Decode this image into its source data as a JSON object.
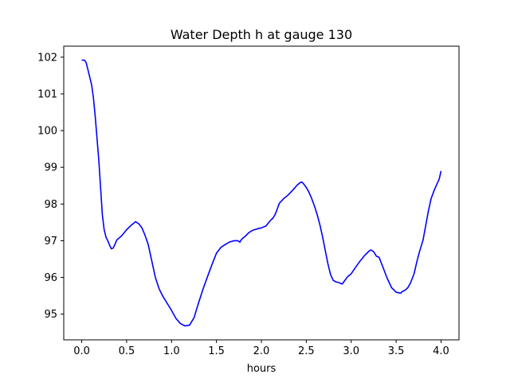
{
  "chart_data": {
    "type": "line",
    "title": "Water Depth h at gauge 130",
    "xlabel": "hours",
    "ylabel": "",
    "xlim": [
      -0.2,
      4.2
    ],
    "ylim": [
      94.3,
      102.3
    ],
    "xticks": [
      0.0,
      0.5,
      1.0,
      1.5,
      2.0,
      2.5,
      3.0,
      3.5,
      4.0
    ],
    "xtick_labels": [
      "0.0",
      "0.5",
      "1.0",
      "1.5",
      "2.0",
      "2.5",
      "3.0",
      "3.5",
      "4.0"
    ],
    "yticks": [
      95,
      96,
      97,
      98,
      99,
      100,
      101,
      102
    ],
    "ytick_labels": [
      "95",
      "96",
      "97",
      "98",
      "99",
      "100",
      "101",
      "102"
    ],
    "grid": false,
    "legend": "none",
    "series": [
      {
        "color": "#0000ff",
        "x": [
          0.0,
          0.03,
          0.05,
          0.07,
          0.09,
          0.11,
          0.13,
          0.15,
          0.17,
          0.19,
          0.21,
          0.23,
          0.25,
          0.27,
          0.29,
          0.31,
          0.33,
          0.35,
          0.37,
          0.39,
          0.42,
          0.45,
          0.5,
          0.55,
          0.6,
          0.64,
          0.67,
          0.7,
          0.74,
          0.78,
          0.82,
          0.86,
          0.9,
          0.95,
          1.0,
          1.05,
          1.1,
          1.15,
          1.2,
          1.25,
          1.3,
          1.35,
          1.4,
          1.45,
          1.5,
          1.55,
          1.6,
          1.65,
          1.7,
          1.74,
          1.76,
          1.78,
          1.82,
          1.86,
          1.9,
          1.95,
          2.0,
          2.05,
          2.1,
          2.13,
          2.15,
          2.17,
          2.2,
          2.25,
          2.3,
          2.35,
          2.4,
          2.43,
          2.45,
          2.47,
          2.5,
          2.53,
          2.56,
          2.59,
          2.62,
          2.65,
          2.68,
          2.71,
          2.74,
          2.77,
          2.8,
          2.83,
          2.86,
          2.9,
          2.93,
          2.96,
          3.0,
          3.05,
          3.1,
          3.15,
          3.2,
          3.22,
          3.25,
          3.28,
          3.31,
          3.35,
          3.4,
          3.45,
          3.5,
          3.55,
          3.57,
          3.6,
          3.63,
          3.66,
          3.7,
          3.73,
          3.76,
          3.8,
          3.83,
          3.86,
          3.89,
          3.92,
          3.95,
          3.98,
          4.0
        ],
        "y": [
          101.92,
          101.92,
          101.85,
          101.65,
          101.45,
          101.25,
          100.9,
          100.4,
          99.8,
          99.2,
          98.45,
          97.7,
          97.3,
          97.1,
          97.0,
          96.88,
          96.78,
          96.8,
          96.9,
          97.02,
          97.08,
          97.15,
          97.3,
          97.42,
          97.52,
          97.45,
          97.35,
          97.18,
          96.9,
          96.45,
          96.0,
          95.7,
          95.5,
          95.3,
          95.1,
          94.88,
          94.74,
          94.68,
          94.7,
          94.9,
          95.3,
          95.68,
          96.02,
          96.35,
          96.66,
          96.82,
          96.9,
          96.97,
          97.0,
          97.0,
          96.96,
          97.04,
          97.12,
          97.22,
          97.28,
          97.32,
          97.35,
          97.4,
          97.55,
          97.62,
          97.7,
          97.82,
          98.02,
          98.15,
          98.25,
          98.38,
          98.52,
          98.58,
          98.6,
          98.55,
          98.45,
          98.32,
          98.15,
          97.95,
          97.72,
          97.45,
          97.12,
          96.75,
          96.38,
          96.08,
          95.92,
          95.88,
          95.86,
          95.82,
          95.92,
          96.02,
          96.1,
          96.28,
          96.45,
          96.6,
          96.72,
          96.75,
          96.7,
          96.58,
          96.55,
          96.3,
          95.98,
          95.72,
          95.6,
          95.57,
          95.62,
          95.65,
          95.72,
          95.85,
          96.1,
          96.42,
          96.7,
          97.02,
          97.42,
          97.82,
          98.15,
          98.35,
          98.52,
          98.68,
          98.9
        ]
      }
    ]
  }
}
